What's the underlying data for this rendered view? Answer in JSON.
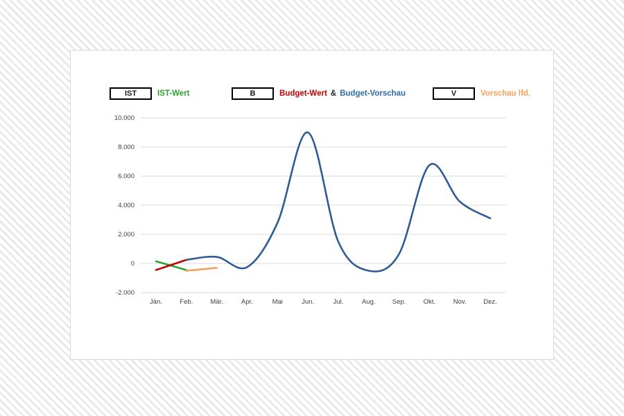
{
  "page": {
    "background_stripe_color": "#e7e7e7",
    "card_background": "#ffffff",
    "card_border_color": "#d9d9d9"
  },
  "legend": {
    "items": [
      {
        "box_label": "IST",
        "parts": [
          {
            "text": "IST-Wert",
            "color": "#2fa233"
          }
        ]
      },
      {
        "box_label": "B",
        "parts": [
          {
            "text": "Budget-Wert",
            "color": "#c00000"
          },
          {
            "text": "&",
            "color": "#262626"
          },
          {
            "text": "Budget-Vorschau",
            "color": "#2e6da8"
          }
        ]
      },
      {
        "box_label": "V",
        "parts": [
          {
            "text": "Vorschau lfd.",
            "color": "#f5a25f"
          }
        ]
      }
    ]
  },
  "chart_data": {
    "type": "line",
    "title": "",
    "xlabel": "",
    "ylabel": "",
    "categories": [
      "Jän.",
      "Feb.",
      "Mär.",
      "Apr.",
      "Mai",
      "Jun.",
      "Jul.",
      "Aug.",
      "Sep.",
      "Okt.",
      "Nov.",
      "Dez."
    ],
    "ylim": [
      -2000,
      10000
    ],
    "ytick_step": 2000,
    "yticks": [
      {
        "value": 10000,
        "label": "10.000"
      },
      {
        "value": 8000,
        "label": "8.000"
      },
      {
        "value": 6000,
        "label": "6.000"
      },
      {
        "value": 4000,
        "label": "4.000"
      },
      {
        "value": 2000,
        "label": "2.000"
      },
      {
        "value": 0,
        "label": "0"
      },
      {
        "value": -2000,
        "label": "-2.000"
      }
    ],
    "grid": true,
    "gridline_color": "#d9d9d9",
    "axis_text_color": "#3f3f3f",
    "legend_position": "top",
    "series": [
      {
        "name": "IST-Wert",
        "color": "#2fa233",
        "smooth": true,
        "points": [
          {
            "month": "Jän.",
            "m": 0,
            "value": 150
          },
          {
            "month": "Feb.",
            "m": 1,
            "value": -450
          }
        ]
      },
      {
        "name": "Budget-Wert",
        "color": "#c00000",
        "smooth": true,
        "points": [
          {
            "month": "Jän.",
            "m": 0,
            "value": -450
          },
          {
            "month": "Feb.",
            "m": 1,
            "value": 250
          }
        ]
      },
      {
        "name": "Budget-Vorschau",
        "color": "#2e5b94",
        "smooth": true,
        "points": [
          {
            "month": "Feb.",
            "m": 1,
            "value": 250
          },
          {
            "month": "Mär.",
            "m": 2,
            "value": 450
          },
          {
            "month": "Apr.",
            "m": 3,
            "value": -250
          },
          {
            "month": "Mai",
            "m": 4,
            "value": 2800
          },
          {
            "month": "Jun.",
            "m": 5,
            "value": 9000
          },
          {
            "month": "Jul.",
            "m": 6,
            "value": 1500
          },
          {
            "month": "Aug.",
            "m": 7,
            "value": -500
          },
          {
            "month": "Sep.",
            "m": 8,
            "value": 650
          },
          {
            "month": "Okt.",
            "m": 9,
            "value": 6750
          },
          {
            "month": "Nov.",
            "m": 10,
            "value": 4250
          },
          {
            "month": "Dez.",
            "m": 11,
            "value": 3100
          }
        ]
      },
      {
        "name": "Vorschau lfd.",
        "color": "#f5a25f",
        "smooth": true,
        "points": [
          {
            "month": "Feb.",
            "m": 1,
            "value": -500
          },
          {
            "month": "Mär.",
            "m": 2,
            "value": -300
          }
        ]
      }
    ]
  }
}
